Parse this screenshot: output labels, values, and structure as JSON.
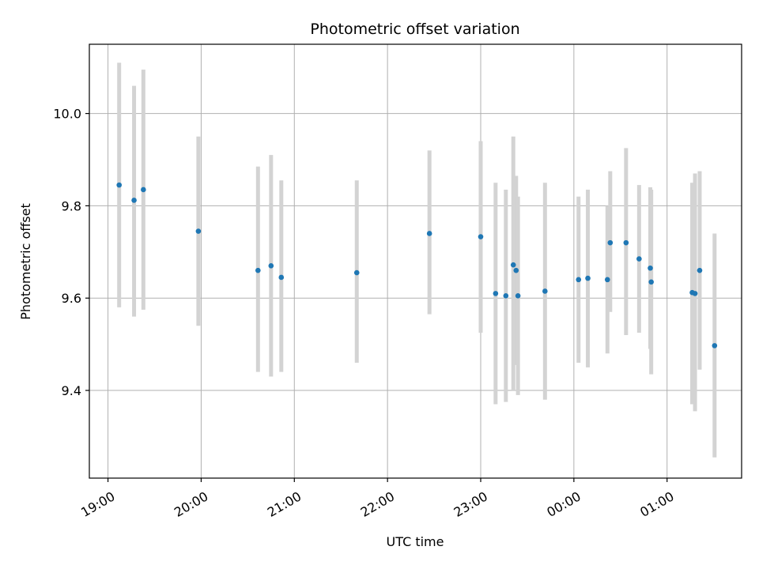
{
  "chart_data": {
    "type": "scatter",
    "title": "Photometric offset variation",
    "xlabel": "UTC time",
    "ylabel": "Photometric offset",
    "xlim": [
      -0.2,
      6.8
    ],
    "ylim": [
      9.21,
      10.15
    ],
    "x_unit": "hours since 19:00 UTC",
    "x_ticks": [
      {
        "value": 0,
        "label": "19:00"
      },
      {
        "value": 1,
        "label": "20:00"
      },
      {
        "value": 2,
        "label": "21:00"
      },
      {
        "value": 3,
        "label": "22:00"
      },
      {
        "value": 4,
        "label": "23:00"
      },
      {
        "value": 5,
        "label": "00:00"
      },
      {
        "value": 6,
        "label": "01:00"
      }
    ],
    "y_ticks": [
      {
        "value": 9.4,
        "label": "9.4"
      },
      {
        "value": 9.6,
        "label": "9.6"
      },
      {
        "value": 9.8,
        "label": "9.8"
      },
      {
        "value": 10.0,
        "label": "10.0"
      }
    ],
    "grid": true,
    "colors": {
      "point": "#1f77b4",
      "errorbar": "#d3d3d3",
      "grid": "#b0b0b0",
      "axes": "#000000"
    },
    "series": [
      {
        "name": "Photometric offset",
        "points": [
          {
            "x": 0.12,
            "y": 9.845,
            "err_low": 9.58,
            "err_high": 10.11
          },
          {
            "x": 0.28,
            "y": 9.812,
            "err_low": 9.56,
            "err_high": 10.06
          },
          {
            "x": 0.38,
            "y": 9.835,
            "err_low": 9.575,
            "err_high": 10.095
          },
          {
            "x": 0.97,
            "y": 9.745,
            "err_low": 9.54,
            "err_high": 9.95
          },
          {
            "x": 1.61,
            "y": 9.66,
            "err_low": 9.44,
            "err_high": 9.885
          },
          {
            "x": 1.75,
            "y": 9.67,
            "err_low": 9.43,
            "err_high": 9.91
          },
          {
            "x": 1.86,
            "y": 9.645,
            "err_low": 9.44,
            "err_high": 9.855
          },
          {
            "x": 2.67,
            "y": 9.655,
            "err_low": 9.46,
            "err_high": 9.855
          },
          {
            "x": 3.45,
            "y": 9.74,
            "err_low": 9.565,
            "err_high": 9.92
          },
          {
            "x": 4.0,
            "y": 9.733,
            "err_low": 9.525,
            "err_high": 9.94
          },
          {
            "x": 4.16,
            "y": 9.61,
            "err_low": 9.37,
            "err_high": 9.85
          },
          {
            "x": 4.27,
            "y": 9.605,
            "err_low": 9.375,
            "err_high": 9.835
          },
          {
            "x": 4.35,
            "y": 9.672,
            "err_low": 9.4,
            "err_high": 9.95
          },
          {
            "x": 4.38,
            "y": 9.66,
            "err_low": 9.455,
            "err_high": 9.865
          },
          {
            "x": 4.4,
            "y": 9.605,
            "err_low": 9.39,
            "err_high": 9.82
          },
          {
            "x": 4.69,
            "y": 9.615,
            "err_low": 9.38,
            "err_high": 9.85
          },
          {
            "x": 5.05,
            "y": 9.64,
            "err_low": 9.46,
            "err_high": 9.82
          },
          {
            "x": 5.15,
            "y": 9.643,
            "err_low": 9.45,
            "err_high": 9.835
          },
          {
            "x": 5.36,
            "y": 9.64,
            "err_low": 9.48,
            "err_high": 9.8
          },
          {
            "x": 5.39,
            "y": 9.72,
            "err_low": 9.57,
            "err_high": 9.875
          },
          {
            "x": 5.56,
            "y": 9.72,
            "err_low": 9.52,
            "err_high": 9.925
          },
          {
            "x": 5.7,
            "y": 9.685,
            "err_low": 9.525,
            "err_high": 9.845
          },
          {
            "x": 5.82,
            "y": 9.665,
            "err_low": 9.49,
            "err_high": 9.84
          },
          {
            "x": 5.83,
            "y": 9.635,
            "err_low": 9.435,
            "err_high": 9.835
          },
          {
            "x": 6.27,
            "y": 9.612,
            "err_low": 9.37,
            "err_high": 9.85
          },
          {
            "x": 6.3,
            "y": 9.61,
            "err_low": 9.355,
            "err_high": 9.87
          },
          {
            "x": 6.35,
            "y": 9.66,
            "err_low": 9.445,
            "err_high": 9.875
          },
          {
            "x": 6.51,
            "y": 9.497,
            "err_low": 9.255,
            "err_high": 9.74
          }
        ]
      }
    ]
  }
}
